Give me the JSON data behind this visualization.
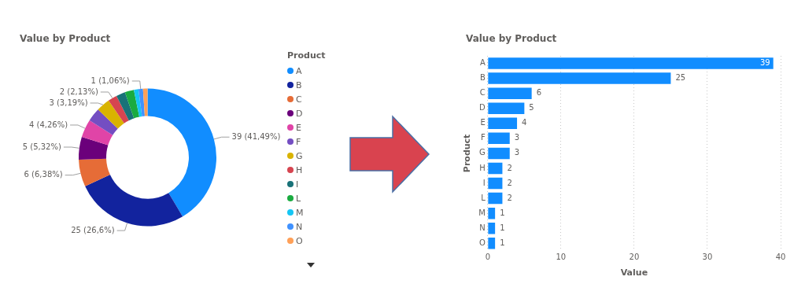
{
  "chart_data": [
    {
      "type": "donut",
      "title": "Value by Product",
      "legend": "right",
      "legend_title": "Product",
      "categories": [
        "A",
        "B",
        "C",
        "D",
        "E",
        "F",
        "G",
        "H",
        "I",
        "L",
        "M",
        "N",
        "O"
      ],
      "values": [
        39,
        25,
        6,
        5,
        4,
        3,
        3,
        2,
        2,
        2,
        1,
        1,
        1
      ],
      "colors": [
        "#118dff",
        "#12239e",
        "#e66c37",
        "#6b007b",
        "#e044a7",
        "#744ec2",
        "#d9b300",
        "#d64550",
        "#197278",
        "#1aab40",
        "#15c6f4",
        "#4092ff",
        "#ffa058"
      ],
      "value_labels": [
        "39 (41,49%)",
        "25 (26,6%)",
        "6 (6,38%)",
        "5 (5,32%)",
        "4 (4,26%)",
        null,
        "3 (3,19%)",
        "2 (2,13%)",
        null,
        null,
        null,
        "1 (1,06%)",
        null
      ]
    },
    {
      "type": "bar",
      "orientation": "horizontal",
      "title": "Value by Product",
      "xlabel": "Value",
      "ylabel": "Product",
      "categories": [
        "A",
        "B",
        "C",
        "D",
        "E",
        "F",
        "G",
        "H",
        "I",
        "L",
        "M",
        "N",
        "O"
      ],
      "values": [
        39,
        25,
        6,
        5,
        4,
        3,
        3,
        2,
        2,
        2,
        1,
        1,
        1
      ],
      "color": "#118dff",
      "xlim": [
        0,
        40
      ],
      "xticks": [
        0,
        10,
        20,
        30,
        40
      ],
      "grid": "x",
      "data_labels": true
    }
  ]
}
